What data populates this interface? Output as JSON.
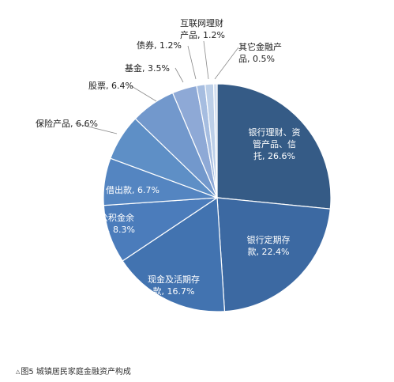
{
  "chart_data": {
    "type": "pie",
    "caption_marker": "△",
    "caption": "图5 城镇居民家庭金融资产构成",
    "slices": [
      {
        "label_lines": [
          "银行理财、资",
          "管产品、信",
          "托, 26.6%"
        ],
        "value": 26.6,
        "color": "#355b86"
      },
      {
        "label_lines": [
          "银行定期存",
          "款, 22.4%"
        ],
        "value": 22.4,
        "color": "#3c69a2"
      },
      {
        "label_lines": [
          "现金及活期存",
          "款, 16.7%"
        ],
        "value": 16.7,
        "color": "#4273b0"
      },
      {
        "label_lines": [
          "公积金余",
          "额, 8.3%"
        ],
        "value": 8.3,
        "color": "#4b7cbb"
      },
      {
        "label_lines": [
          "借出款, 6.7%"
        ],
        "value": 6.7,
        "color": "#5485c1"
      },
      {
        "label_lines": [
          "保险产品, 6.6%"
        ],
        "value": 6.6,
        "color": "#5e8fc6"
      },
      {
        "label_lines": [
          "股票, 6.4%"
        ],
        "value": 6.4,
        "color": "#7298cc"
      },
      {
        "label_lines": [
          "基金, 3.5%"
        ],
        "value": 3.5,
        "color": "#8ea9d6"
      },
      {
        "label_lines": [
          "债券, 1.2%"
        ],
        "value": 1.2,
        "color": "#a6bde0"
      },
      {
        "label_lines": [
          "互联网理财",
          "产品, 1.2%"
        ],
        "value": 1.2,
        "color": "#bccfe8"
      },
      {
        "label_lines": [
          "其它金融产",
          "品, 0.5%"
        ],
        "value": 0.5,
        "color": "#d1def0"
      }
    ]
  }
}
